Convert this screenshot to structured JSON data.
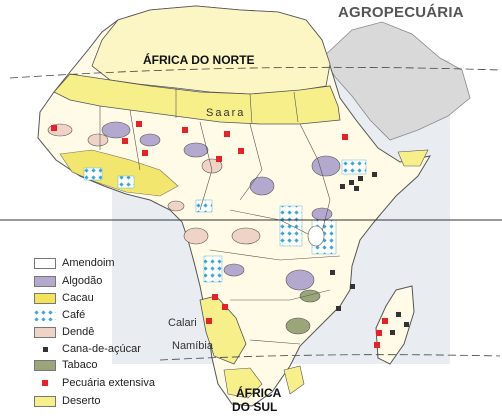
{
  "title": "AGROPECUÁRIA",
  "regions": {
    "north": "ÁFRICA DO NORTE",
    "sahara": "Saara",
    "south_line1": "ÁFRICA",
    "south_line2": "DO SUL"
  },
  "places": {
    "calahari": "Calari",
    "namibia": "Namíbia"
  },
  "legend": [
    {
      "label": "Amendoim",
      "color": "#ffffff"
    },
    {
      "label": "Algodão",
      "color": "#b3a9cf"
    },
    {
      "label": "Cacau",
      "color": "#f2e35a"
    },
    {
      "label": "Café",
      "color": "#36a8d8"
    },
    {
      "label": "Dendê",
      "color": "#efd3c5"
    },
    {
      "label": "Cana-de-açúcar",
      "color": "#333333"
    },
    {
      "label": "Tabaco",
      "color": "#9aa57a"
    },
    {
      "label": "Pecuária extensiva",
      "color": "#e8202a"
    },
    {
      "label": "Deserto",
      "color": "#f7ef8a"
    }
  ],
  "colors": {
    "land": "#fffbe6",
    "north_africa": "#fbf6c4",
    "desert": "#f7ef8a",
    "arabia": "#d9d9d9",
    "highlight_box": "#e9edf2",
    "border": "#555555"
  }
}
